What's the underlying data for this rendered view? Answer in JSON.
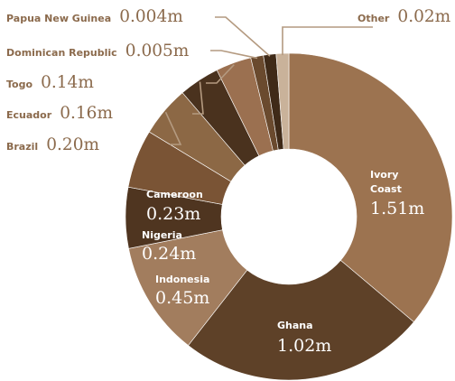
{
  "chart_data": {
    "type": "pie",
    "style": "donut",
    "categories": [
      "Ivory Coast",
      "Ghana",
      "Indonesia",
      "Nigeria",
      "Cameroon",
      "Brazil",
      "Ecuador",
      "Togo",
      "Dominican Republic",
      "Papua New Guinea",
      "Other"
    ],
    "values": [
      1.51,
      1.02,
      0.45,
      0.24,
      0.23,
      0.2,
      0.16,
      0.14,
      0.005,
      0.004,
      0.02
    ],
    "labels": [
      {
        "name": "Ivory",
        "name2": "Coast",
        "value": "1.51m"
      },
      {
        "name": "Ghana",
        "value": "1.02m"
      },
      {
        "name": "Indonesia",
        "value": "0.45m"
      },
      {
        "name": "Nigeria",
        "value": "0.24m"
      },
      {
        "name": "Cameroon",
        "value": "0.23m"
      },
      {
        "name": "Brazil",
        "value": "0.20m"
      },
      {
        "name": "Ecuador",
        "value": "0.16m"
      },
      {
        "name": "Togo",
        "value": "0.14m"
      },
      {
        "name": "Dominican Republic",
        "value": "0.005m"
      },
      {
        "name": "Papua New Guinea",
        "value": "0.004m"
      },
      {
        "name": "Other",
        "value": "0.02m"
      }
    ],
    "colors": [
      "#9c7350",
      "#5e4128",
      "#a27d5e",
      "#4f3520",
      "#7a5435",
      "#8c6845",
      "#4a321e",
      "#9b7050",
      "#6a4a2e",
      "#3f2a18",
      "#c9b29a"
    ],
    "label_color": "#8b6a4c",
    "leader_line_color": "#b49a80"
  }
}
